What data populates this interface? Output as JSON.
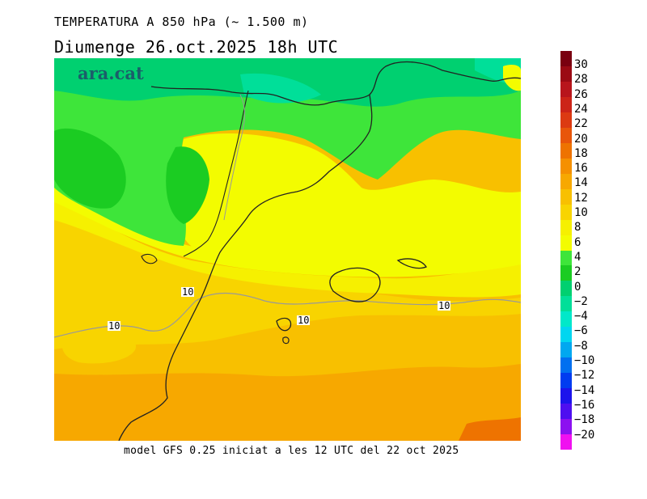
{
  "header": {
    "title_line1": "TEMPERATURA A 850 hPa (~ 1.500 m)",
    "title_line2": "Diumenge  26.oct.2025 18h UTC"
  },
  "map": {
    "logo_text": "ara.cat",
    "contour_labels": [
      "10",
      "10",
      "10",
      "10"
    ]
  },
  "footer": {
    "model_text": "model GFS 0.25 iniciat a les 12 UTC del 22 oct 2025"
  },
  "colorbar": {
    "labels": [
      "30",
      "28",
      "26",
      "24",
      "22",
      "20",
      "18",
      "16",
      "14",
      "12",
      "10",
      "8",
      "6",
      "4",
      "2",
      "0",
      "−2",
      "−4",
      "−6",
      "−8",
      "−10",
      "−12",
      "−14",
      "−16",
      "−18",
      "−20"
    ],
    "colors": [
      "#7a0010",
      "#9b0a14",
      "#b8151c",
      "#cc2418",
      "#dc3a12",
      "#e8560a",
      "#ee7300",
      "#f59000",
      "#f7a800",
      "#f8c000",
      "#f8d400",
      "#f6f000",
      "#f3fc00",
      "#3ee53a",
      "#1bcc22",
      "#00d070",
      "#00df99",
      "#00e8c9",
      "#00d6f0",
      "#00a8f0",
      "#0070f0",
      "#003cf0",
      "#1c14ec",
      "#4e0ff0",
      "#8c10f0",
      "#f010f0"
    ]
  }
}
